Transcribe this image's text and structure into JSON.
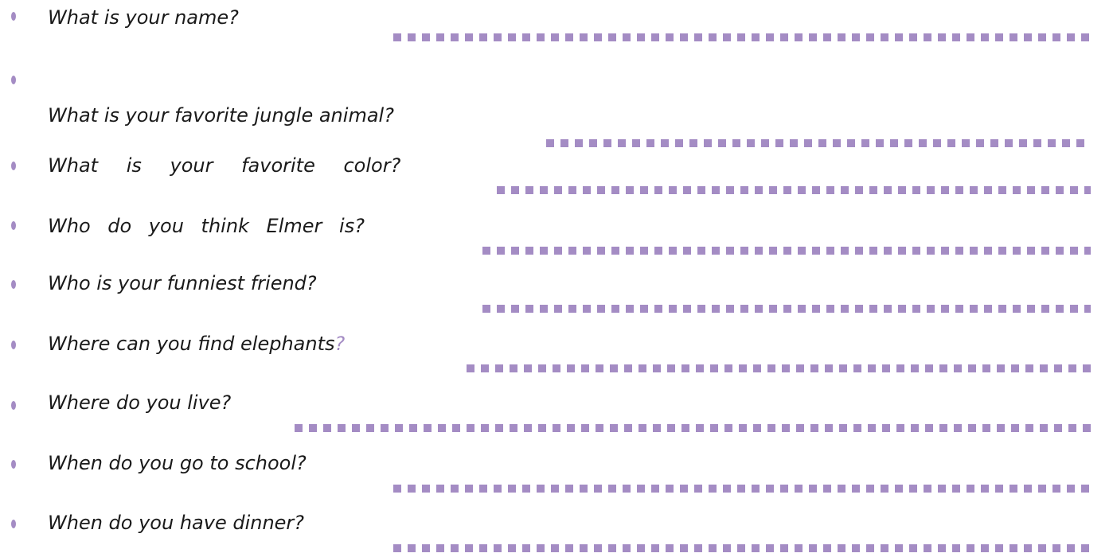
{
  "accent_color": "#a48cc4",
  "questions": [
    {
      "text": "What is your name?",
      "mark": ""
    },
    {
      "text": "What is your favorite jungle animal?",
      "mark": ""
    },
    {
      "text": "What is your favorite color?",
      "mark": ""
    },
    {
      "text": "Who do you think Elmer is?",
      "mark": ""
    },
    {
      "text": "Who is your funniest friend?",
      "mark": ""
    },
    {
      "text": "Where can you find elephants",
      "mark": "?"
    },
    {
      "text": "Where do you live?",
      "mark": ""
    },
    {
      "text": "When do you go to school?",
      "mark": ""
    },
    {
      "text": "When do you have dinner?",
      "mark": ""
    }
  ]
}
